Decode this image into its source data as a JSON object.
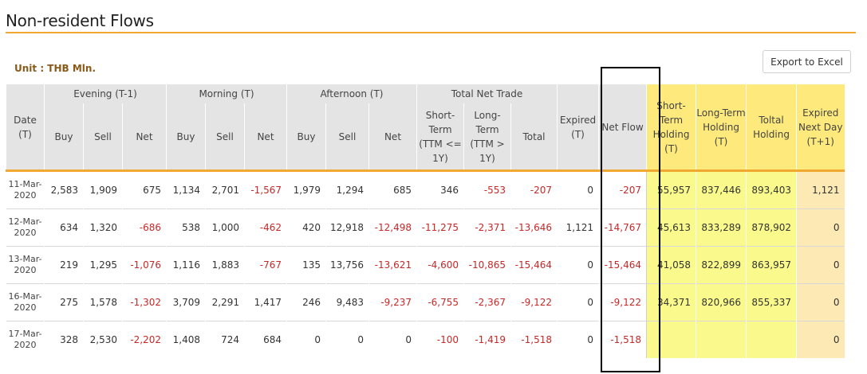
{
  "page": {
    "title": "Non-resident Flows",
    "unit": "Unit : THB Mln.",
    "export_label": "Export to Excel"
  },
  "headers": {
    "date": "Date (T)",
    "evening": "Evening (T-1)",
    "morning": "Morning (T)",
    "afternoon": "Afternoon (T)",
    "total_net_trade": "Total Net Trade",
    "buy": "Buy",
    "sell": "Sell",
    "net": "Net",
    "short_term": "Short-Term (TTM <= 1Y)",
    "long_term": "Long-Term (TTM > 1Y)",
    "total": "Total",
    "expired": "Expired (T)",
    "net_flow": "Net Flow",
    "short_holding": "Short-Term Holding (T)",
    "long_holding": "Long-Term Holding (T)",
    "total_holding": "Toltal Holding",
    "expired_next": "Expired Next Day (T+1)"
  },
  "rows": [
    {
      "date": "11-Mar-2020",
      "ev_buy": "2,583",
      "ev_sell": "1,909",
      "ev_net": "675",
      "mo_buy": "1,134",
      "mo_sell": "2,701",
      "mo_net": "-1,567",
      "af_buy": "1,979",
      "af_sell": "1,294",
      "af_net": "685",
      "short": "346",
      "long": "-553",
      "total": "-207",
      "expired": "0",
      "net_flow": "-207",
      "short_hold": "55,957",
      "long_hold": "837,446",
      "total_hold": "893,403",
      "exp_next": "1,121"
    },
    {
      "date": "12-Mar-2020",
      "ev_buy": "634",
      "ev_sell": "1,320",
      "ev_net": "-686",
      "mo_buy": "538",
      "mo_sell": "1,000",
      "mo_net": "-462",
      "af_buy": "420",
      "af_sell": "12,918",
      "af_net": "-12,498",
      "short": "-11,275",
      "long": "-2,371",
      "total": "-13,646",
      "expired": "1,121",
      "net_flow": "-14,767",
      "short_hold": "45,613",
      "long_hold": "833,289",
      "total_hold": "878,902",
      "exp_next": "0"
    },
    {
      "date": "13-Mar-2020",
      "ev_buy": "219",
      "ev_sell": "1,295",
      "ev_net": "-1,076",
      "mo_buy": "1,116",
      "mo_sell": "1,883",
      "mo_net": "-767",
      "af_buy": "135",
      "af_sell": "13,756",
      "af_net": "-13,621",
      "short": "-4,600",
      "long": "-10,865",
      "total": "-15,464",
      "expired": "0",
      "net_flow": "-15,464",
      "short_hold": "41,058",
      "long_hold": "822,899",
      "total_hold": "863,957",
      "exp_next": "0"
    },
    {
      "date": "16-Mar-2020",
      "ev_buy": "275",
      "ev_sell": "1,578",
      "ev_net": "-1,302",
      "mo_buy": "3,709",
      "mo_sell": "2,291",
      "mo_net": "1,417",
      "af_buy": "246",
      "af_sell": "9,483",
      "af_net": "-9,237",
      "short": "-6,755",
      "long": "-2,367",
      "total": "-9,122",
      "expired": "0",
      "net_flow": "-9,122",
      "short_hold": "34,371",
      "long_hold": "820,966",
      "total_hold": "855,337",
      "exp_next": "0"
    },
    {
      "date": "17-Mar-2020",
      "ev_buy": "328",
      "ev_sell": "2,530",
      "ev_net": "-2,202",
      "mo_buy": "1,408",
      "mo_sell": "724",
      "mo_net": "684",
      "af_buy": "0",
      "af_sell": "0",
      "af_net": "0",
      "short": "-100",
      "long": "-1,419",
      "total": "-1,518",
      "expired": "0",
      "net_flow": "-1,518",
      "short_hold": "",
      "long_hold": "",
      "total_hold": "",
      "exp_next": "0"
    }
  ],
  "colors": {
    "accent": "#f0a830",
    "negative": "#c62828",
    "header_bg": "#e4e4e4",
    "holding_header": "#fde97c",
    "holding_cell": "#fafa8c",
    "expired_next_cell": "#fde9b4"
  }
}
